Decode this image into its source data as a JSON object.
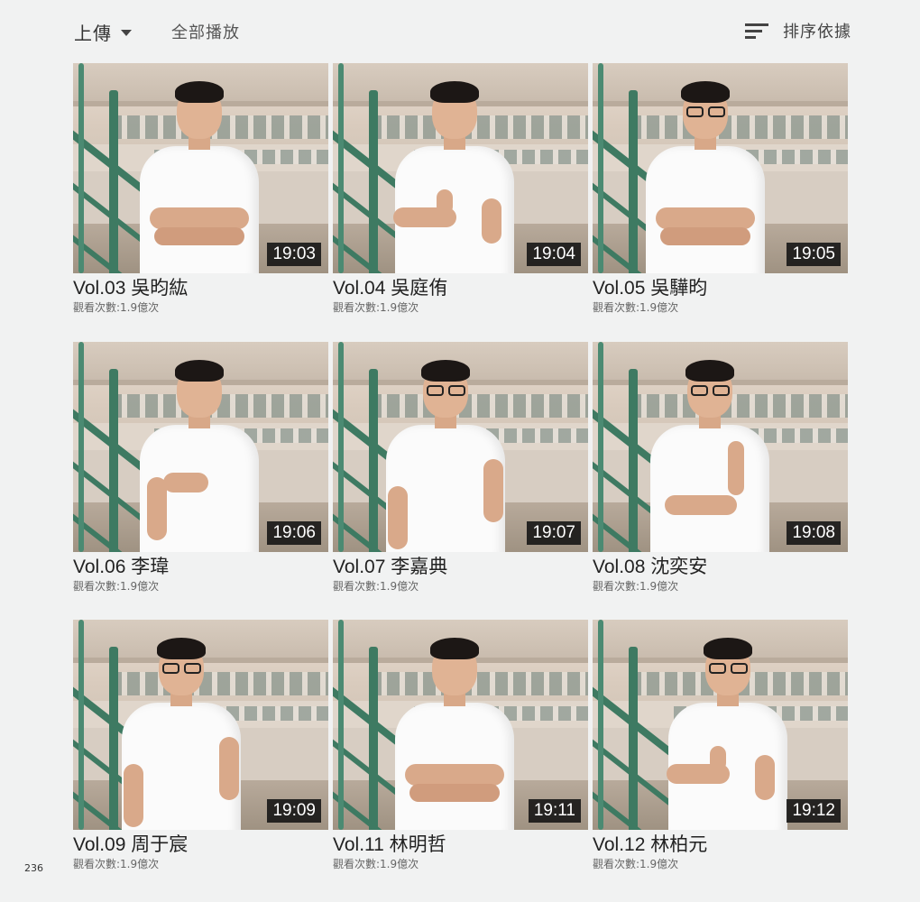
{
  "toolbar": {
    "upload_label": "上傳",
    "play_all_label": "全部播放",
    "sort_label": "排序依據"
  },
  "videos": [
    {
      "title": "Vol.03 吳昀紘",
      "views": "觀看次數:1.9億次",
      "duration": "19:03"
    },
    {
      "title": "Vol.04 吳庭侑",
      "views": "觀看次數:1.9億次",
      "duration": "19:04"
    },
    {
      "title": "Vol.05 吳驊昀",
      "views": "觀看次數:1.9億次",
      "duration": "19:05"
    },
    {
      "title": "Vol.06 李瑋",
      "views": "觀看次數:1.9億次",
      "duration": "19:06"
    },
    {
      "title": "Vol.07 李嘉典",
      "views": "觀看次數:1.9億次",
      "duration": "19:07"
    },
    {
      "title": "Vol.08 沈奕安",
      "views": "觀看次數:1.9億次",
      "duration": "19:08"
    },
    {
      "title": "Vol.09 周于宸",
      "views": "觀看次數:1.9億次",
      "duration": "19:09"
    },
    {
      "title": "Vol.11 林明哲",
      "views": "觀看次數:1.9億次",
      "duration": "19:11"
    },
    {
      "title": "Vol.12 林柏元",
      "views": "觀看次數:1.9億次",
      "duration": "19:12"
    }
  ],
  "page_number": "236"
}
